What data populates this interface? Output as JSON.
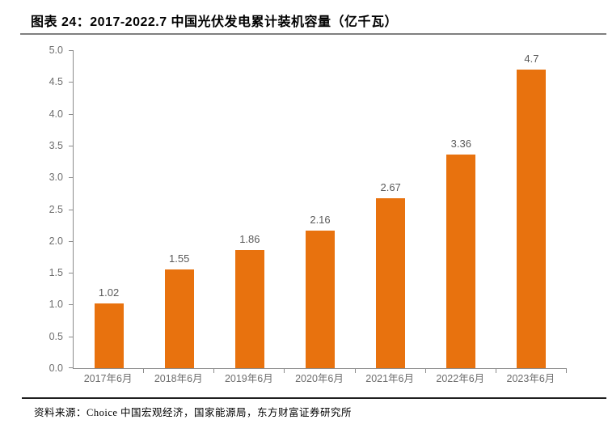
{
  "header": {
    "title": "图表 24：2017-2022.7 中国光伏发电累计装机容量（亿千瓦）"
  },
  "footer": {
    "source_label": "资料来源：",
    "source_text": "Choice 中国宏观经济，国家能源局，东方财富证券研究所"
  },
  "chart_data": {
    "type": "bar",
    "title": "图表 24：2017-2022.7 中国光伏发电累计装机容量（亿千瓦）",
    "categories": [
      "2017年6月",
      "2018年6月",
      "2019年6月",
      "2020年6月",
      "2021年6月",
      "2022年6月",
      "2023年6月"
    ],
    "values": [
      1.02,
      1.55,
      1.86,
      2.16,
      2.67,
      3.36,
      4.7
    ],
    "value_labels": [
      "1.02",
      "1.55",
      "1.86",
      "2.16",
      "2.67",
      "3.36",
      "4.7"
    ],
    "xlabel": "",
    "ylabel": "",
    "ylim": [
      0,
      5
    ],
    "ytick_step": 0.5,
    "ytick_labels": [
      "0.0",
      "0.5",
      "1.0",
      "1.5",
      "2.0",
      "2.5",
      "3.0",
      "3.5",
      "4.0",
      "4.5",
      "5.0"
    ],
    "grid": false,
    "legend": false,
    "bar_color": "#E8720E",
    "value_label_color": "#595959",
    "tick_label_color": "#6e6e6e",
    "axis_color": "#8c8c8c"
  }
}
